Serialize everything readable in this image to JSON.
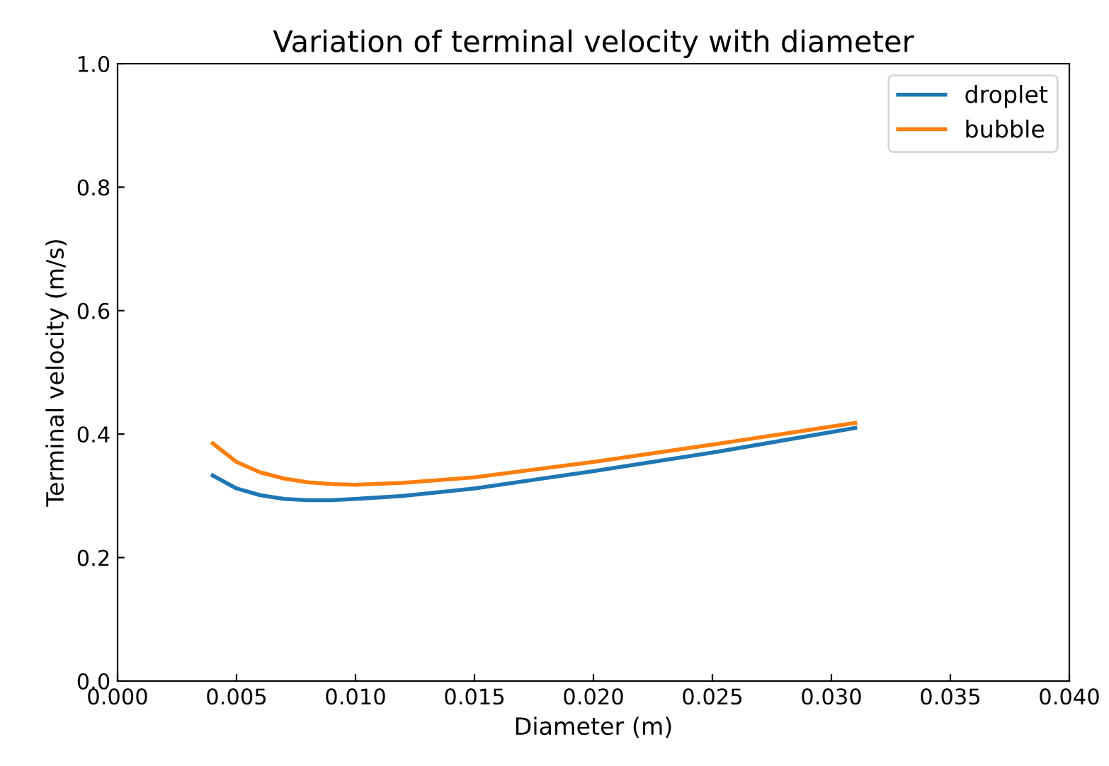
{
  "chart_data": {
    "type": "line",
    "title": "Variation of terminal velocity with diameter",
    "xlabel": "Diameter (m)",
    "ylabel": "Terminal velocity (m/s)",
    "x": [
      0.004,
      0.005,
      0.006,
      0.007,
      0.008,
      0.009,
      0.01,
      0.012,
      0.015,
      0.02,
      0.025,
      0.031
    ],
    "series": [
      {
        "name": "droplet",
        "color": "#1f77b4",
        "values": [
          0.333,
          0.312,
          0.301,
          0.295,
          0.293,
          0.293,
          0.295,
          0.3,
          0.312,
          0.34,
          0.37,
          0.41
        ]
      },
      {
        "name": "bubble",
        "color": "#ff7f0e",
        "values": [
          0.385,
          0.355,
          0.338,
          0.328,
          0.322,
          0.319,
          0.318,
          0.321,
          0.33,
          0.355,
          0.383,
          0.418
        ]
      }
    ],
    "xlim": [
      0,
      0.04
    ],
    "xticks": [
      {
        "value": 0,
        "label": "0.000"
      },
      {
        "value": 0.005,
        "label": "0.005"
      },
      {
        "value": 0.01,
        "label": "0.010"
      },
      {
        "value": 0.015,
        "label": "0.015"
      },
      {
        "value": 0.02,
        "label": "0.020"
      },
      {
        "value": 0.025,
        "label": "0.025"
      },
      {
        "value": 0.03,
        "label": "0.030"
      },
      {
        "value": 0.035,
        "label": "0.035"
      },
      {
        "value": 0.04,
        "label": "0.040"
      }
    ],
    "ylim": [
      0,
      1
    ],
    "yticks": [
      {
        "value": 0,
        "label": "0.0"
      },
      {
        "value": 0.2,
        "label": "0.2"
      },
      {
        "value": 0.4,
        "label": "0.4"
      },
      {
        "value": 0.6,
        "label": "0.6"
      },
      {
        "value": 0.8,
        "label": "0.8"
      },
      {
        "value": 1,
        "label": "1.0"
      }
    ],
    "legend": "top right",
    "grid": false,
    "marker": "none",
    "line_style": "solid"
  }
}
